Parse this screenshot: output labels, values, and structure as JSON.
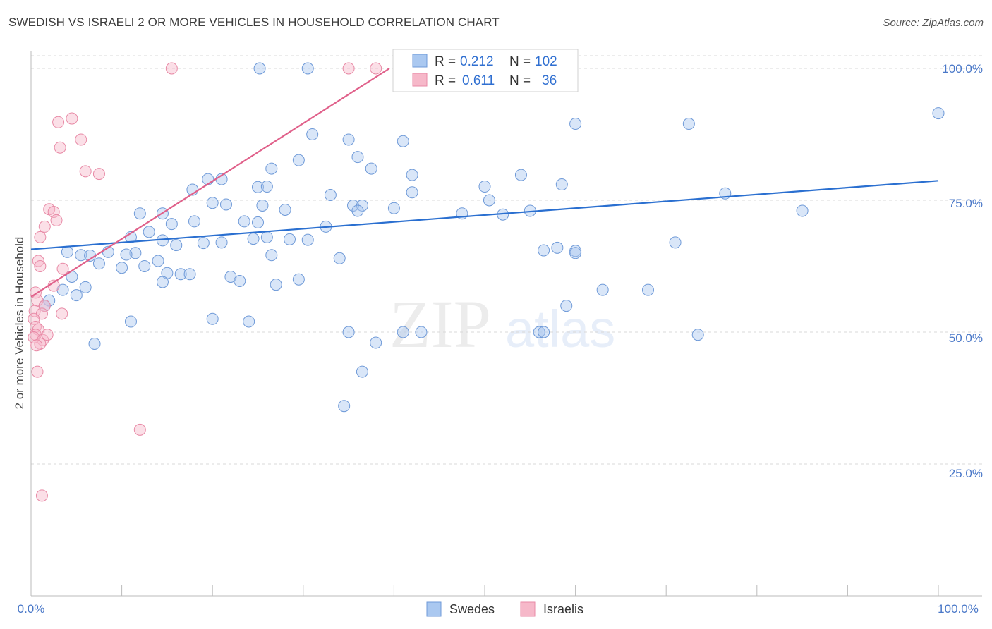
{
  "header": {
    "title": "SWEDISH VS ISRAELI 2 OR MORE VEHICLES IN HOUSEHOLD CORRELATION CHART",
    "source": "Source: ZipAtlas.com"
  },
  "colors": {
    "swedes_fill": "#aac8f0",
    "swedes_stroke": "#6f9ad8",
    "swedes_line": "#2a6fd0",
    "israelis_fill": "#f6b8c9",
    "israelis_stroke": "#e88aa6",
    "israelis_line": "#e0608a",
    "grid": "#d8d8d8",
    "tick_text": "#4a78c8"
  },
  "stats": {
    "r_label": "R =",
    "n_label": "N =",
    "swedes": {
      "r": "0.212",
      "n": "102"
    },
    "israelis": {
      "r": "0.611",
      "n": "36"
    }
  },
  "chart_data": {
    "type": "scatter",
    "title": "SWEDISH VS ISRAELI 2 OR MORE VEHICLES IN HOUSEHOLD CORRELATION CHART",
    "xlabel": "",
    "ylabel": "2 or more Vehicles in Household",
    "x_tick_labels": [
      "0.0%",
      "100.0%"
    ],
    "y_tick_labels": [
      "100.0%",
      "75.0%",
      "50.0%",
      "25.0%"
    ],
    "xlim": [
      0,
      100
    ],
    "ylim": [
      0,
      102.5
    ],
    "grid": "horizontal dashed",
    "legend_position": "bottom-center",
    "series": [
      {
        "name": "Swedes",
        "trend": {
          "x": [
            0,
            100
          ],
          "y": [
            65.7,
            78.7
          ]
        },
        "points": [
          [
            25.2,
            100
          ],
          [
            30.5,
            100
          ],
          [
            56.0,
            100
          ],
          [
            100.0,
            91.5
          ],
          [
            72.5,
            89.5
          ],
          [
            60.0,
            89.5
          ],
          [
            31.0,
            87.5
          ],
          [
            35.0,
            86.5
          ],
          [
            41.0,
            86.2
          ],
          [
            29.5,
            82.6
          ],
          [
            36.0,
            83.2
          ],
          [
            26.5,
            81.0
          ],
          [
            37.5,
            81.0
          ],
          [
            42.0,
            79.8
          ],
          [
            54.0,
            79.8
          ],
          [
            19.5,
            79.0
          ],
          [
            21.0,
            79.0
          ],
          [
            25.0,
            77.5
          ],
          [
            26.0,
            77.6
          ],
          [
            50.0,
            77.6
          ],
          [
            58.5,
            78.0
          ],
          [
            17.8,
            77.0
          ],
          [
            33.0,
            76.0
          ],
          [
            42.0,
            76.5
          ],
          [
            76.5,
            76.3
          ],
          [
            50.5,
            75.0
          ],
          [
            20.0,
            74.5
          ],
          [
            21.5,
            74.2
          ],
          [
            25.5,
            74.0
          ],
          [
            35.5,
            74.0
          ],
          [
            36.5,
            74.0
          ],
          [
            40.0,
            73.5
          ],
          [
            28.0,
            73.2
          ],
          [
            36.0,
            73.0
          ],
          [
            55.0,
            73.0
          ],
          [
            85.0,
            73.0
          ],
          [
            47.5,
            72.5
          ],
          [
            12.0,
            72.5
          ],
          [
            14.5,
            72.5
          ],
          [
            52.0,
            72.3
          ],
          [
            18.0,
            71.0
          ],
          [
            15.5,
            70.5
          ],
          [
            23.5,
            71.0
          ],
          [
            25.0,
            70.8
          ],
          [
            32.5,
            70.0
          ],
          [
            13.0,
            69.0
          ],
          [
            11.0,
            68.0
          ],
          [
            24.5,
            67.7
          ],
          [
            28.5,
            67.6
          ],
          [
            30.5,
            67.5
          ],
          [
            26.0,
            68.0
          ],
          [
            14.5,
            67.4
          ],
          [
            19.0,
            66.9
          ],
          [
            21.0,
            67.0
          ],
          [
            16.0,
            66.5
          ],
          [
            11.5,
            65.0
          ],
          [
            26.5,
            64.6
          ],
          [
            34.0,
            64.0
          ],
          [
            56.5,
            65.5
          ],
          [
            60.0,
            65.4
          ],
          [
            8.5,
            65.2
          ],
          [
            10.5,
            64.7
          ],
          [
            5.5,
            64.6
          ],
          [
            4.0,
            65.2
          ],
          [
            6.5,
            64.5
          ],
          [
            7.5,
            63.0
          ],
          [
            10.0,
            62.2
          ],
          [
            14.0,
            63.5
          ],
          [
            12.5,
            62.5
          ],
          [
            15.0,
            61.2
          ],
          [
            16.5,
            61.0
          ],
          [
            22.0,
            60.5
          ],
          [
            27.0,
            59.0
          ],
          [
            29.5,
            60.0
          ],
          [
            4.5,
            60.5
          ],
          [
            6.0,
            58.5
          ],
          [
            3.5,
            58.0
          ],
          [
            5.0,
            57.0
          ],
          [
            2.0,
            56.0
          ],
          [
            1.5,
            55.0
          ],
          [
            11.0,
            52.0
          ],
          [
            14.5,
            59.5
          ],
          [
            17.5,
            61.0
          ],
          [
            23.0,
            59.7
          ],
          [
            20.0,
            52.5
          ],
          [
            24.0,
            52.0
          ],
          [
            7.0,
            47.8
          ],
          [
            35.0,
            50.0
          ],
          [
            41.0,
            50.0
          ],
          [
            43.0,
            50.0
          ],
          [
            56.0,
            50.0
          ],
          [
            38.0,
            48.0
          ],
          [
            36.5,
            42.5
          ],
          [
            59.0,
            55.0
          ],
          [
            63.0,
            58.0
          ],
          [
            68.0,
            58.0
          ],
          [
            58.0,
            66.0
          ],
          [
            60.0,
            65.0
          ],
          [
            71.0,
            67.0
          ],
          [
            56.5,
            50.0
          ],
          [
            73.5,
            49.5
          ],
          [
            34.5,
            36.0
          ]
        ]
      },
      {
        "name": "Israelis",
        "trend": {
          "x": [
            0,
            39.5
          ],
          "y": [
            56.7,
            100
          ]
        },
        "points": [
          [
            15.5,
            100
          ],
          [
            35.0,
            100
          ],
          [
            38.0,
            100
          ],
          [
            3.0,
            89.8
          ],
          [
            4.5,
            90.5
          ],
          [
            5.5,
            86.5
          ],
          [
            3.2,
            85.0
          ],
          [
            6.0,
            80.5
          ],
          [
            7.5,
            80.0
          ],
          [
            2.0,
            73.3
          ],
          [
            2.5,
            72.8
          ],
          [
            2.8,
            71.2
          ],
          [
            1.5,
            70.0
          ],
          [
            1.0,
            68.0
          ],
          [
            0.8,
            63.5
          ],
          [
            1.0,
            62.5
          ],
          [
            3.5,
            62.0
          ],
          [
            2.5,
            58.8
          ],
          [
            0.5,
            57.5
          ],
          [
            0.7,
            56.0
          ],
          [
            1.5,
            55.0
          ],
          [
            0.4,
            54.0
          ],
          [
            1.2,
            53.5
          ],
          [
            0.3,
            52.5
          ],
          [
            0.5,
            51.0
          ],
          [
            0.8,
            50.5
          ],
          [
            0.5,
            49.5
          ],
          [
            0.3,
            49.0
          ],
          [
            1.3,
            48.5
          ],
          [
            1.8,
            49.5
          ],
          [
            1.0,
            47.8
          ],
          [
            0.6,
            47.5
          ],
          [
            0.7,
            42.5
          ],
          [
            12.0,
            31.5
          ],
          [
            1.2,
            19.0
          ],
          [
            3.4,
            53.5
          ]
        ]
      }
    ]
  },
  "legend": {
    "swedes": "Swedes",
    "israelis": "Israelis"
  },
  "watermark": {
    "zip": "ZIP",
    "atlas": "atlas"
  }
}
